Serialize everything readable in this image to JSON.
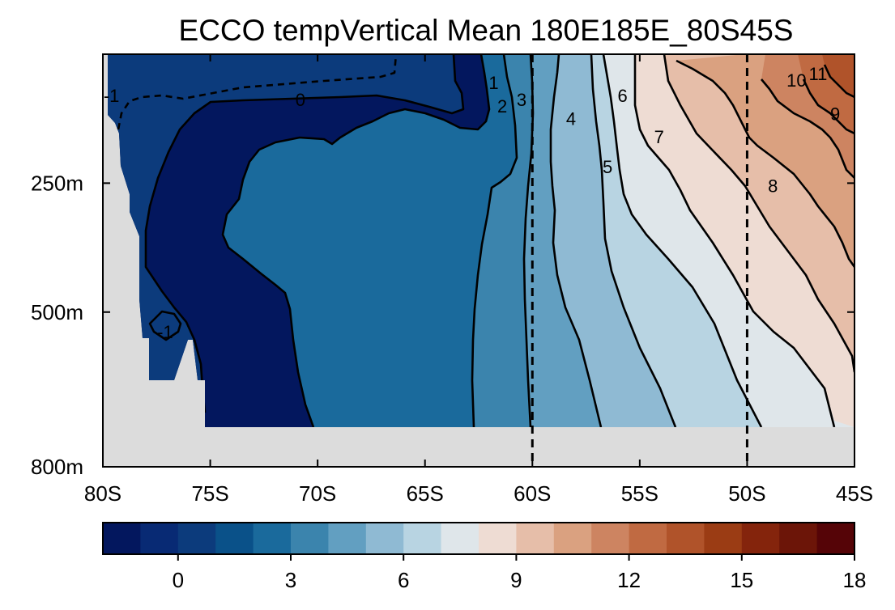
{
  "chart_data": {
    "type": "heatmap",
    "subtype": "filled-contour",
    "title": "ECCO tempVertical Mean 180E185E_80S45S",
    "x_ticks": [
      "80S",
      "75S",
      "70S",
      "65S",
      "60S",
      "55S",
      "50S",
      "45S"
    ],
    "x_values": [
      -80,
      -75,
      -70,
      -65,
      -60,
      -55,
      -50,
      -45
    ],
    "xlim": [
      -80,
      -45
    ],
    "y_ticks": [
      "250m",
      "500m",
      "800m"
    ],
    "y_values": [
      250,
      500,
      800
    ],
    "ylim": [
      800,
      0
    ],
    "data_bottom_depth": 720,
    "missing_color": "#dcdcdc",
    "reference_lines_lat": [
      -60,
      -50
    ],
    "contour_levels": [
      -1,
      0,
      1,
      2,
      3,
      4,
      5,
      6,
      7,
      8,
      9,
      10,
      11
    ],
    "contour_labels": [
      {
        "text": "-1",
        "lat": -79.6,
        "depth": 80
      },
      {
        "text": "0",
        "lat": -70.8,
        "depth": 88
      },
      {
        "text": "1",
        "lat": -61.8,
        "depth": 55
      },
      {
        "text": "2",
        "lat": -61.4,
        "depth": 100
      },
      {
        "text": "3",
        "lat": -60.5,
        "depth": 88
      },
      {
        "text": "4",
        "lat": -58.2,
        "depth": 125
      },
      {
        "text": "5",
        "lat": -56.5,
        "depth": 218
      },
      {
        "text": "6",
        "lat": -55.8,
        "depth": 80
      },
      {
        "text": "7",
        "lat": -54.1,
        "depth": 160
      },
      {
        "text": "8",
        "lat": -48.8,
        "depth": 255
      },
      {
        "text": "9",
        "lat": -45.9,
        "depth": 115
      },
      {
        "text": "10",
        "lat": -47.7,
        "depth": 50
      },
      {
        "text": "11",
        "lat": -46.7,
        "depth": 38
      },
      {
        "text": "-1",
        "lat": -77.1,
        "depth": 538
      }
    ],
    "colorbar": {
      "ticks": [
        "0",
        "3",
        "6",
        "9",
        "12",
        "15",
        "18"
      ],
      "tick_values": [
        0,
        3,
        6,
        9,
        12,
        15,
        18
      ],
      "range": [
        -2,
        18
      ],
      "bounds": [
        -2,
        -1,
        0,
        1,
        2,
        3,
        4,
        5,
        6,
        7,
        8,
        9,
        10,
        11,
        12,
        13,
        14,
        15,
        16,
        17,
        18
      ],
      "colors": [
        "#03175e",
        "#082a74",
        "#0c3b7c",
        "#0a5189",
        "#1a6a9c",
        "#3b84ad",
        "#629fc1",
        "#8fbad3",
        "#b8d4e2",
        "#dfe6ea",
        "#eedcd3",
        "#e6bea9",
        "#daa180",
        "#cd8461",
        "#c06a42",
        "#b0532a",
        "#9b3c14",
        "#84240c",
        "#6c1508",
        "#550407"
      ]
    }
  }
}
